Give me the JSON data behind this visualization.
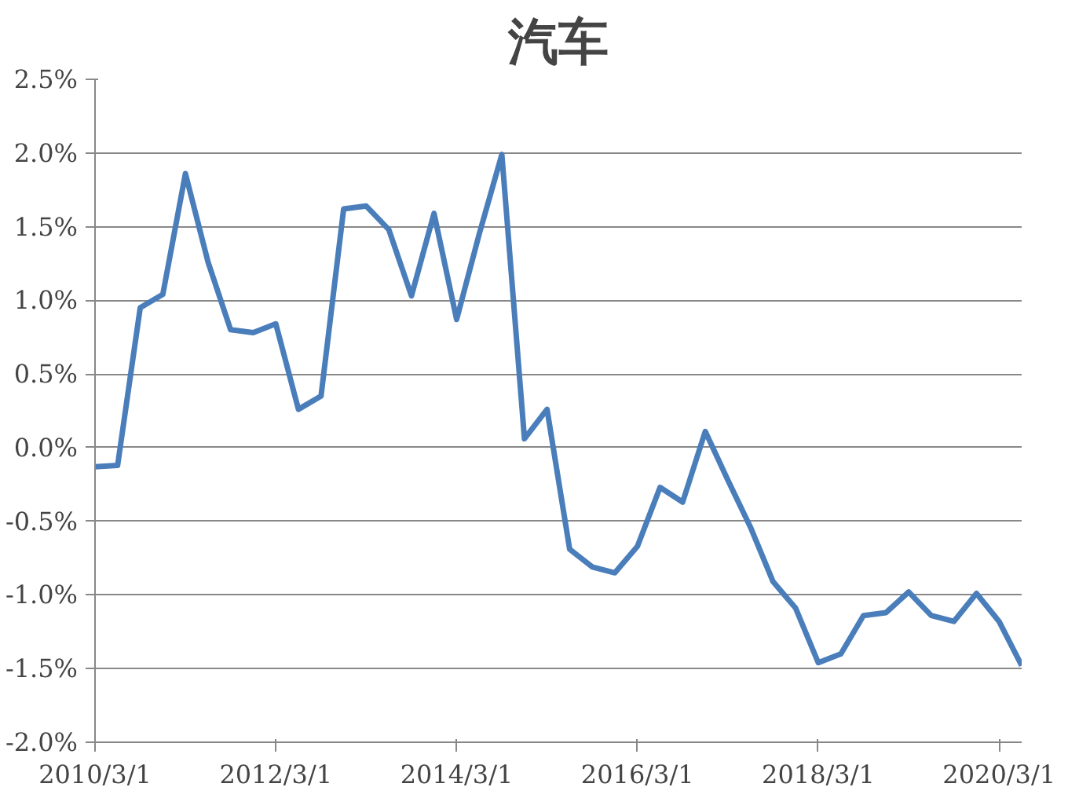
{
  "chart_data": {
    "type": "line",
    "title": "汽车",
    "categories": [
      "2010/3/1",
      null,
      null,
      null,
      null,
      null,
      null,
      null,
      "2012/3/1",
      null,
      null,
      null,
      null,
      null,
      null,
      null,
      "2014/3/1",
      null,
      null,
      null,
      null,
      null,
      null,
      null,
      "2016/3/1",
      null,
      null,
      null,
      null,
      null,
      null,
      null,
      "2018/3/1",
      null,
      null,
      null,
      null,
      null,
      null,
      null,
      "2020/3/1",
      null
    ],
    "series": [
      {
        "color": "#4a7ebb",
        "values": [
          -0.13,
          -0.12,
          0.95,
          1.04,
          1.86,
          1.26,
          0.8,
          0.78,
          0.84,
          0.26,
          0.35,
          1.62,
          1.64,
          1.48,
          1.03,
          1.59,
          0.87,
          1.45,
          1.99,
          0.06,
          0.26,
          -0.69,
          -0.81,
          -0.85,
          -0.67,
          -0.27,
          -0.37,
          0.11,
          -0.22,
          -0.54,
          -0.91,
          -1.09,
          -1.46,
          -1.4,
          -1.14,
          -1.12,
          -0.98,
          -1.14,
          -1.18,
          -0.99,
          -1.18,
          -1.48
        ]
      }
    ],
    "ylim": [
      -2.0,
      2.5
    ],
    "yticks": [
      {
        "value": -2.0,
        "label": "-2.0%"
      },
      {
        "value": -1.5,
        "label": "-1.5%"
      },
      {
        "value": -1.0,
        "label": "-1.0%"
      },
      {
        "value": -0.5,
        "label": "-0.5%"
      },
      {
        "value": 0.0,
        "label": "0.0%"
      },
      {
        "value": 0.5,
        "label": "0.5%"
      },
      {
        "value": 1.0,
        "label": "1.0%"
      },
      {
        "value": 1.5,
        "label": "1.5%"
      },
      {
        "value": 2.0,
        "label": "2.0%"
      },
      {
        "value": 2.5,
        "label": "2.5%"
      }
    ],
    "grid": "y",
    "marker": "none",
    "line_style": "solid"
  }
}
